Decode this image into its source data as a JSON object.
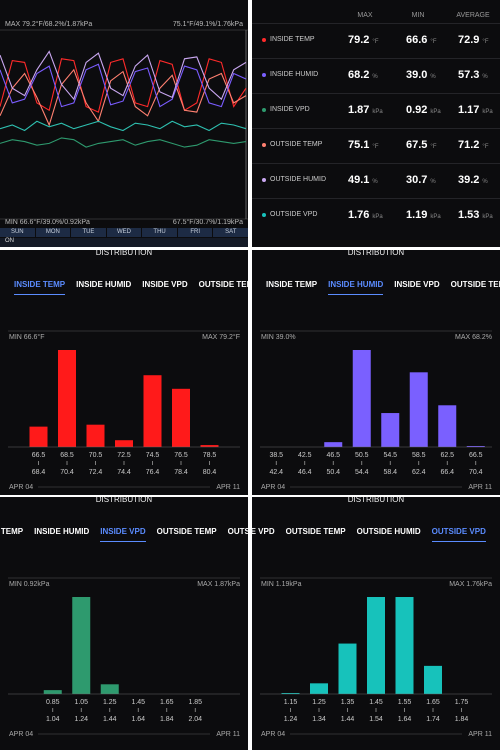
{
  "line_panel": {
    "type": "line",
    "max_inside": "MAX 79.2°F/68.2%/1.87kPa",
    "max_outside": "75.1°F/49.1%/1.76kPa",
    "min_inside": "MIN 66.6°F/39.0%/0.92kPa",
    "min_outside": "67.5°F/30.7%/1.19kPa",
    "days": [
      "SUN",
      "MON",
      "TUE",
      "WED",
      "THU",
      "FRI",
      "SAT"
    ],
    "toggle": "ON",
    "ylim": [
      0,
      100
    ],
    "series": [
      {
        "color": "#ff2a2a",
        "values": [
          60,
          85,
          84,
          62,
          58,
          86,
          85,
          60,
          57,
          84,
          86,
          62,
          60,
          85,
          83,
          58,
          62,
          86,
          84,
          60,
          70
        ]
      },
      {
        "color": "#ff8070",
        "values": [
          55,
          70,
          78,
          65,
          50,
          72,
          80,
          62,
          52,
          74,
          79,
          60,
          55,
          70,
          77,
          58,
          57,
          75,
          78,
          62,
          66
        ]
      },
      {
        "color": "#7a5cff",
        "values": [
          80,
          62,
          64,
          78,
          82,
          60,
          62,
          80,
          83,
          61,
          63,
          79,
          81,
          60,
          64,
          82,
          80,
          62,
          60,
          78,
          75
        ]
      },
      {
        "color": "#c9a7f0",
        "values": [
          88,
          70,
          66,
          80,
          90,
          72,
          64,
          84,
          89,
          70,
          66,
          82,
          88,
          68,
          65,
          86,
          87,
          70,
          64,
          80,
          84
        ]
      },
      {
        "color": "#2e9a6e",
        "values": [
          40,
          42,
          41,
          39,
          40,
          43,
          42,
          38,
          40,
          41,
          42,
          39,
          41,
          42,
          40,
          38,
          39,
          42,
          41,
          40,
          41
        ]
      },
      {
        "color": "#2ec0b0",
        "values": [
          48,
          50,
          47,
          52,
          49,
          51,
          48,
          50,
          52,
          49,
          47,
          51,
          50,
          48,
          52,
          49,
          50,
          47,
          51,
          50,
          48
        ]
      }
    ]
  },
  "summary_table": {
    "columns": [
      "MAX",
      "MIN",
      "AVERAGE"
    ]
  },
  "metrics": [
    {
      "name": "INSIDE TEMP",
      "color": "#ff2a2a",
      "unit": "°F",
      "max": "79.2",
      "min": "66.6",
      "avg": "72.9"
    },
    {
      "name": "INSIDE HUMID",
      "color": "#7a60ff",
      "unit": "%",
      "max": "68.2",
      "min": "39.0",
      "avg": "57.3"
    },
    {
      "name": "INSIDE VPD",
      "color": "#2e9a6e",
      "unit": "kPa",
      "max": "1.87",
      "min": "0.92",
      "avg": "1.17"
    },
    {
      "name": "OUTSIDE TEMP",
      "color": "#ff8070",
      "unit": "°F",
      "max": "75.1",
      "min": "67.5",
      "avg": "71.2"
    },
    {
      "name": "OUTSIDE HUMID",
      "color": "#c9a7f0",
      "unit": "%",
      "max": "49.1",
      "min": "30.7",
      "avg": "39.2"
    },
    {
      "name": "OUTSIDE VPD",
      "color": "#17c2bb",
      "unit": "kPa",
      "max": "1.76",
      "min": "1.19",
      "avg": "1.53"
    }
  ],
  "distribution_title": "DISTRIBUTION",
  "distributions": [
    {
      "type": "bar",
      "active_tab": 0,
      "color": "#ff1a1a",
      "min_label": "MIN 66.6°F",
      "max_label": "MAX 79.2°F",
      "bin_starts": [
        66.5,
        68.5,
        70.5,
        72.5,
        74.5,
        76.5,
        78.5
      ],
      "bin_ends": [
        68.4,
        70.4,
        72.4,
        74.4,
        76.4,
        78.4,
        80.4
      ],
      "values": [
        21,
        100,
        23,
        7,
        74,
        60,
        2
      ],
      "ylim": [
        0,
        100
      ],
      "start": "APR 04",
      "end": "APR 11"
    },
    {
      "type": "bar",
      "active_tab": 1,
      "color": "#7a60ff",
      "min_label": "MIN 39.0%",
      "max_label": "MAX 68.2%",
      "bin_starts": [
        38.5,
        42.5,
        46.5,
        50.5,
        54.5,
        58.5,
        62.5,
        66.5
      ],
      "bin_ends": [
        42.4,
        46.4,
        50.4,
        54.4,
        58.4,
        62.4,
        66.4,
        70.4
      ],
      "values": [
        0,
        0,
        5,
        100,
        35,
        77,
        43,
        1
      ],
      "ylim": [
        0,
        100
      ],
      "start": "APR 04",
      "end": "APR 11"
    },
    {
      "type": "bar",
      "active_tab": 2,
      "color": "#2e9a6e",
      "min_label": "MIN 0.92kPa",
      "max_label": "MAX 1.87kPa",
      "bin_starts": [
        0.85,
        1.05,
        1.25,
        1.45,
        1.65,
        1.85
      ],
      "bin_ends": [
        1.04,
        1.24,
        1.44,
        1.64,
        1.84,
        2.04
      ],
      "values": [
        4,
        100,
        10,
        0,
        0,
        0
      ],
      "ylim": [
        0,
        100
      ],
      "start": "APR 04",
      "end": "APR 11"
    },
    {
      "type": "bar",
      "active_tab": 5,
      "color": "#17c2bb",
      "min_label": "MIN 1.19kPa",
      "max_label": "MAX 1.76kPa",
      "bin_starts": [
        1.15,
        1.25,
        1.35,
        1.45,
        1.55,
        1.65,
        1.75
      ],
      "bin_ends": [
        1.24,
        1.34,
        1.44,
        1.54,
        1.64,
        1.74,
        1.84
      ],
      "values": [
        1,
        11,
        52,
        100,
        100,
        29,
        0
      ],
      "ylim": [
        0,
        100
      ],
      "start": "APR 04",
      "end": "APR 11"
    }
  ]
}
